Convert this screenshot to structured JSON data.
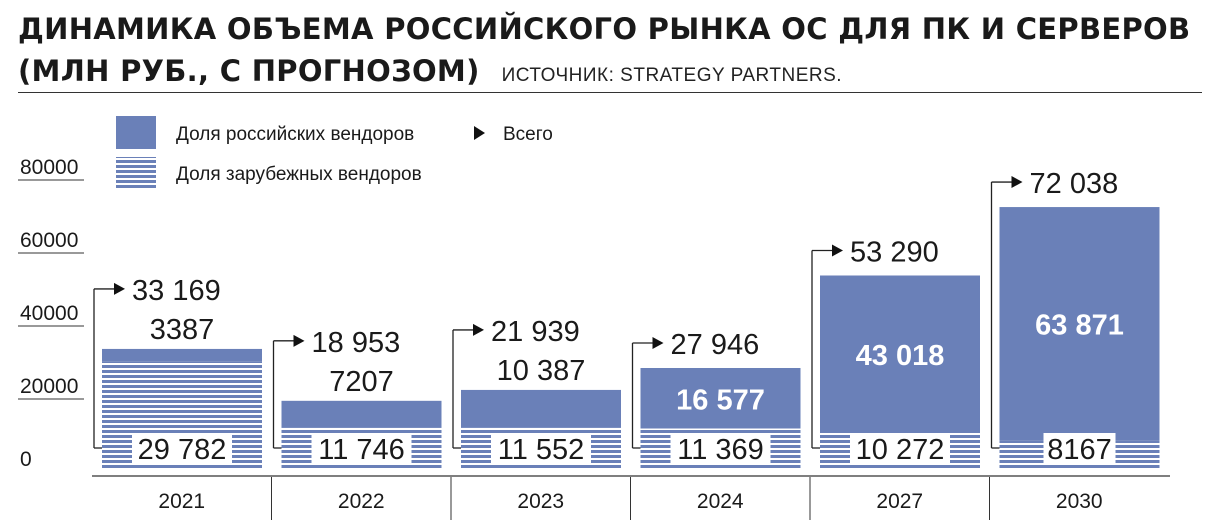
{
  "header": {
    "title_line1": "ДИНАМИКА ОБЪЕМА РОССИЙСКОГО РЫНКА ОС ДЛЯ ПК И СЕРВЕРОВ",
    "title_line2": "(МЛН РУБ., С ПРОГНОЗОМ)",
    "source": "ИСТОЧНИК: STRATEGY PARTNERS."
  },
  "chart_data": {
    "type": "bar",
    "stacked": true,
    "title": "ДИНАМИКА ОБЪЕМА РОССИЙСКОГО РЫНКА ОС ДЛЯ ПК И СЕРВЕРОВ (МЛН РУБ., С ПРОГНОЗОМ)",
    "categories": [
      "2021",
      "2022",
      "2023",
      "2024",
      "2027",
      "2030"
    ],
    "series": [
      {
        "name": "Доля зарубежных вендоров",
        "values": [
          29782,
          11746,
          11552,
          11369,
          10272,
          8167
        ],
        "labels": [
          "29 782",
          "11 746",
          "11 552",
          "11 369",
          "10 272",
          "8167"
        ],
        "color": "#6a80b8",
        "pattern": "horizontal-stripes"
      },
      {
        "name": "Доля российских вендоров",
        "values": [
          3387,
          7207,
          10387,
          16577,
          43018,
          63871
        ],
        "labels": [
          "3387",
          "7207",
          "10 387",
          "16 577",
          "43 018",
          "63 871"
        ],
        "color": "#6a80b8"
      }
    ],
    "totals": {
      "name": "Всего",
      "values": [
        33169,
        18953,
        21939,
        27946,
        53290,
        72038
      ],
      "labels": [
        "33 169",
        "18 953",
        "21 939",
        "27 946",
        "53 290",
        "72 038"
      ]
    },
    "y_ticks": [
      "0",
      "20000",
      "40000",
      "60000",
      "80000"
    ],
    "ylim": [
      0,
      80000
    ],
    "legend": {
      "position": "top-left",
      "items": [
        "Доля российских вендоров",
        "Доля зарубежных вендоров",
        "Всего"
      ]
    },
    "grid": false,
    "colors": {
      "bar": "#6a80b8",
      "text": "#1a1a1a"
    }
  }
}
